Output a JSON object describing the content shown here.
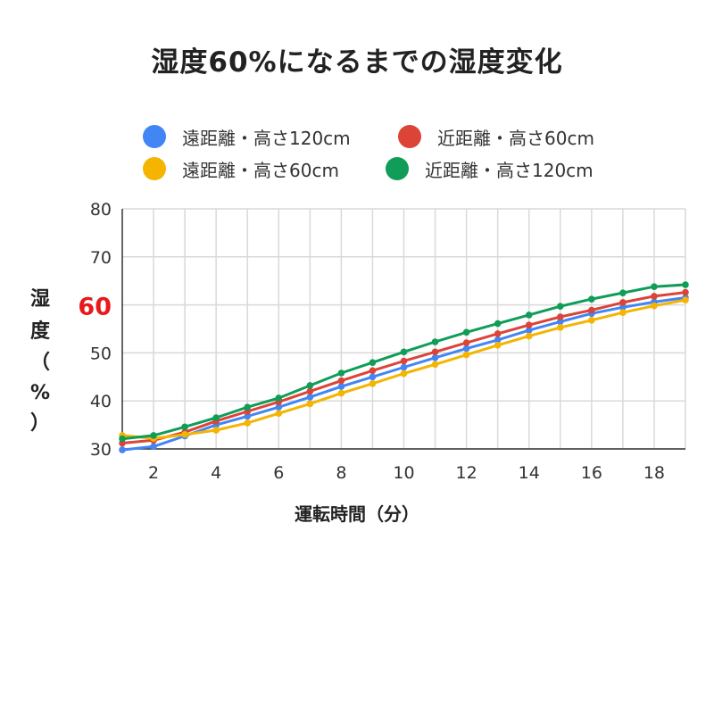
{
  "chart_data": {
    "type": "line",
    "title": "湿度60%になるまでの湿度変化",
    "xlabel": "運転時間（分）",
    "ylabel_chars": [
      "湿",
      "度",
      "（",
      "%",
      "）"
    ],
    "x": [
      1,
      2,
      3,
      4,
      5,
      6,
      7,
      8,
      9,
      10,
      11,
      12,
      13,
      14,
      15,
      16,
      17,
      18,
      19
    ],
    "xlim": [
      1,
      19
    ],
    "ylim": [
      30,
      80
    ],
    "x_ticks": [
      2,
      4,
      6,
      8,
      10,
      12,
      14,
      16,
      18
    ],
    "y_ticks": [
      30,
      40,
      50,
      60,
      70,
      80
    ],
    "highlight_tick": 60,
    "highlight_color": "#e8181b",
    "grid": true,
    "legend_position": "top",
    "series": [
      {
        "name": "遠距離・高さ120cm",
        "color": "#4285f4",
        "values": [
          29.8,
          30.5,
          32.7,
          35.0,
          36.8,
          38.7,
          40.8,
          43.0,
          45.0,
          47.0,
          49.0,
          50.9,
          52.7,
          54.7,
          56.5,
          58.2,
          59.5,
          60.6,
          61.5
        ]
      },
      {
        "name": "近距離・高さ60cm",
        "color": "#db4437",
        "values": [
          31.2,
          31.8,
          33.5,
          35.8,
          37.8,
          39.8,
          42.0,
          44.2,
          46.3,
          48.3,
          50.2,
          52.1,
          54.0,
          55.8,
          57.5,
          58.9,
          60.5,
          61.8,
          62.6
        ]
      },
      {
        "name": "遠距離・高さ60cm",
        "color": "#f4b400",
        "values": [
          32.8,
          32.2,
          33.0,
          33.9,
          35.4,
          37.4,
          39.4,
          41.6,
          43.6,
          45.7,
          47.6,
          49.6,
          51.6,
          53.5,
          55.3,
          56.8,
          58.4,
          59.8,
          61.0
        ]
      },
      {
        "name": "近距離・高さ120cm",
        "color": "#0f9d58",
        "values": [
          32.1,
          32.8,
          34.6,
          36.5,
          38.7,
          40.6,
          43.2,
          45.8,
          48.0,
          50.2,
          52.3,
          54.3,
          56.1,
          57.9,
          59.7,
          61.2,
          62.5,
          63.8,
          64.2
        ]
      }
    ]
  }
}
